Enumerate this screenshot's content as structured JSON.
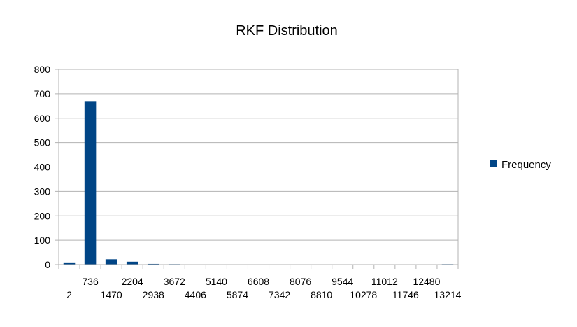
{
  "chart_data": {
    "type": "bar",
    "title": "RKF Distribution",
    "xlabel": "",
    "ylabel": "",
    "ylim": [
      0,
      800
    ],
    "y_ticks": [
      0,
      100,
      200,
      300,
      400,
      500,
      600,
      700,
      800
    ],
    "grid": true,
    "legend_position": "right",
    "categories": [
      "2",
      "736",
      "1470",
      "2204",
      "2938",
      "3672",
      "4406",
      "5140",
      "5874",
      "6608",
      "7342",
      "8076",
      "8810",
      "9544",
      "10278",
      "11012",
      "11746",
      "12480",
      "13214"
    ],
    "series": [
      {
        "name": "Frequency",
        "color": "#004586",
        "values": [
          9,
          670,
          22,
          12,
          3,
          2,
          0,
          1,
          0,
          0,
          0,
          0,
          0,
          0,
          0,
          0,
          0,
          0,
          2
        ]
      }
    ]
  }
}
